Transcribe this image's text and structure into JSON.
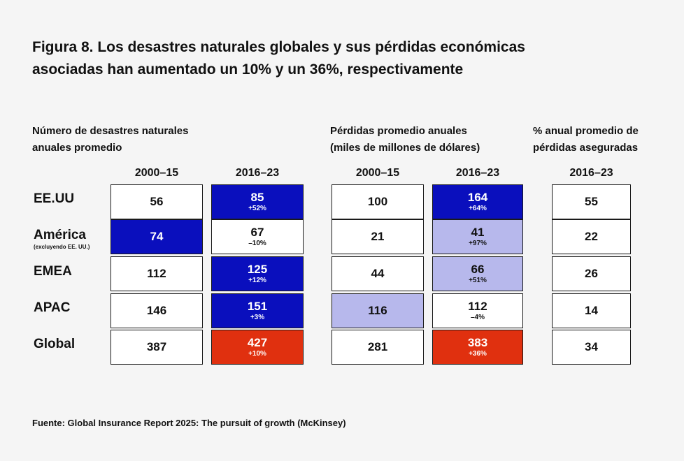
{
  "title": {
    "line1": "Figura 8. Los desastres naturales globales y sus pérdidas económicas",
    "line2": "asociadas han aumentado un 10% y un 36%, respectivamente"
  },
  "colors": {
    "blue": "#0a0fbd",
    "light_blue": "#b7b8ec",
    "red": "#e0300f",
    "white": "#ffffff"
  },
  "sections": [
    {
      "label_line1": "Número de desastres naturales",
      "label_line2": "anuales promedio"
    },
    {
      "label_line1": "Pérdidas promedio anuales",
      "label_line2": "(miles de millones de dólares)"
    },
    {
      "label_line1": "% anual promedio de",
      "label_line2": "pérdidas aseguradas"
    }
  ],
  "columns": [
    "2000–15",
    "2016–23",
    "2000–15",
    "2016–23",
    "2016–23"
  ],
  "rows": [
    {
      "label": "EE.UU",
      "sub": ""
    },
    {
      "label": "América",
      "sub": "(excluyendo EE. UU.)"
    },
    {
      "label": "EMEA",
      "sub": ""
    },
    {
      "label": "APAC",
      "sub": ""
    },
    {
      "label": "Global",
      "sub": ""
    }
  ],
  "chart_data": {
    "type": "table",
    "title": "Figura 8. Los desastres naturales globales y sus pérdidas económicas asociadas han aumentado un 10% y un 36%, respectivamente",
    "row_labels": [
      "EE.UU",
      "América (excluyendo EE. UU.)",
      "EMEA",
      "APAC",
      "Global"
    ],
    "column_groups": [
      "Número de desastres naturales anuales promedio",
      "Pérdidas promedio anuales (miles de millones de dólares)",
      "% anual promedio de pérdidas aseguradas"
    ],
    "columns": [
      {
        "group": 0,
        "period": "2000–15",
        "cells": [
          {
            "value": "56",
            "change": "",
            "color": "white"
          },
          {
            "value": "74",
            "change": "",
            "color": "blue"
          },
          {
            "value": "112",
            "change": "",
            "color": "white"
          },
          {
            "value": "146",
            "change": "",
            "color": "white"
          },
          {
            "value": "387",
            "change": "",
            "color": "white"
          }
        ]
      },
      {
        "group": 0,
        "period": "2016–23",
        "cells": [
          {
            "value": "85",
            "change": "+52%",
            "color": "blue"
          },
          {
            "value": "67",
            "change": "–10%",
            "color": "white"
          },
          {
            "value": "125",
            "change": "+12%",
            "color": "blue"
          },
          {
            "value": "151",
            "change": "+3%",
            "color": "blue"
          },
          {
            "value": "427",
            "change": "+10%",
            "color": "red"
          }
        ]
      },
      {
        "group": 1,
        "period": "2000–15",
        "cells": [
          {
            "value": "100",
            "change": "",
            "color": "white"
          },
          {
            "value": "21",
            "change": "",
            "color": "white"
          },
          {
            "value": "44",
            "change": "",
            "color": "white"
          },
          {
            "value": "116",
            "change": "",
            "color": "light_blue"
          },
          {
            "value": "281",
            "change": "",
            "color": "white"
          }
        ]
      },
      {
        "group": 1,
        "period": "2016–23",
        "cells": [
          {
            "value": "164",
            "change": "+64%",
            "color": "blue"
          },
          {
            "value": "41",
            "change": "+97%",
            "color": "light_blue"
          },
          {
            "value": "66",
            "change": "+51%",
            "color": "light_blue"
          },
          {
            "value": "112",
            "change": "–4%",
            "color": "white"
          },
          {
            "value": "383",
            "change": "+36%",
            "color": "red"
          }
        ]
      },
      {
        "group": 2,
        "period": "2016–23",
        "cells": [
          {
            "value": "55",
            "change": "",
            "color": "white"
          },
          {
            "value": "22",
            "change": "",
            "color": "white"
          },
          {
            "value": "26",
            "change": "",
            "color": "white"
          },
          {
            "value": "14",
            "change": "",
            "color": "white"
          },
          {
            "value": "34",
            "change": "",
            "color": "white"
          }
        ]
      }
    ]
  },
  "source": "Fuente: Global Insurance Report 2025: The pursuit of growth (McKinsey)"
}
